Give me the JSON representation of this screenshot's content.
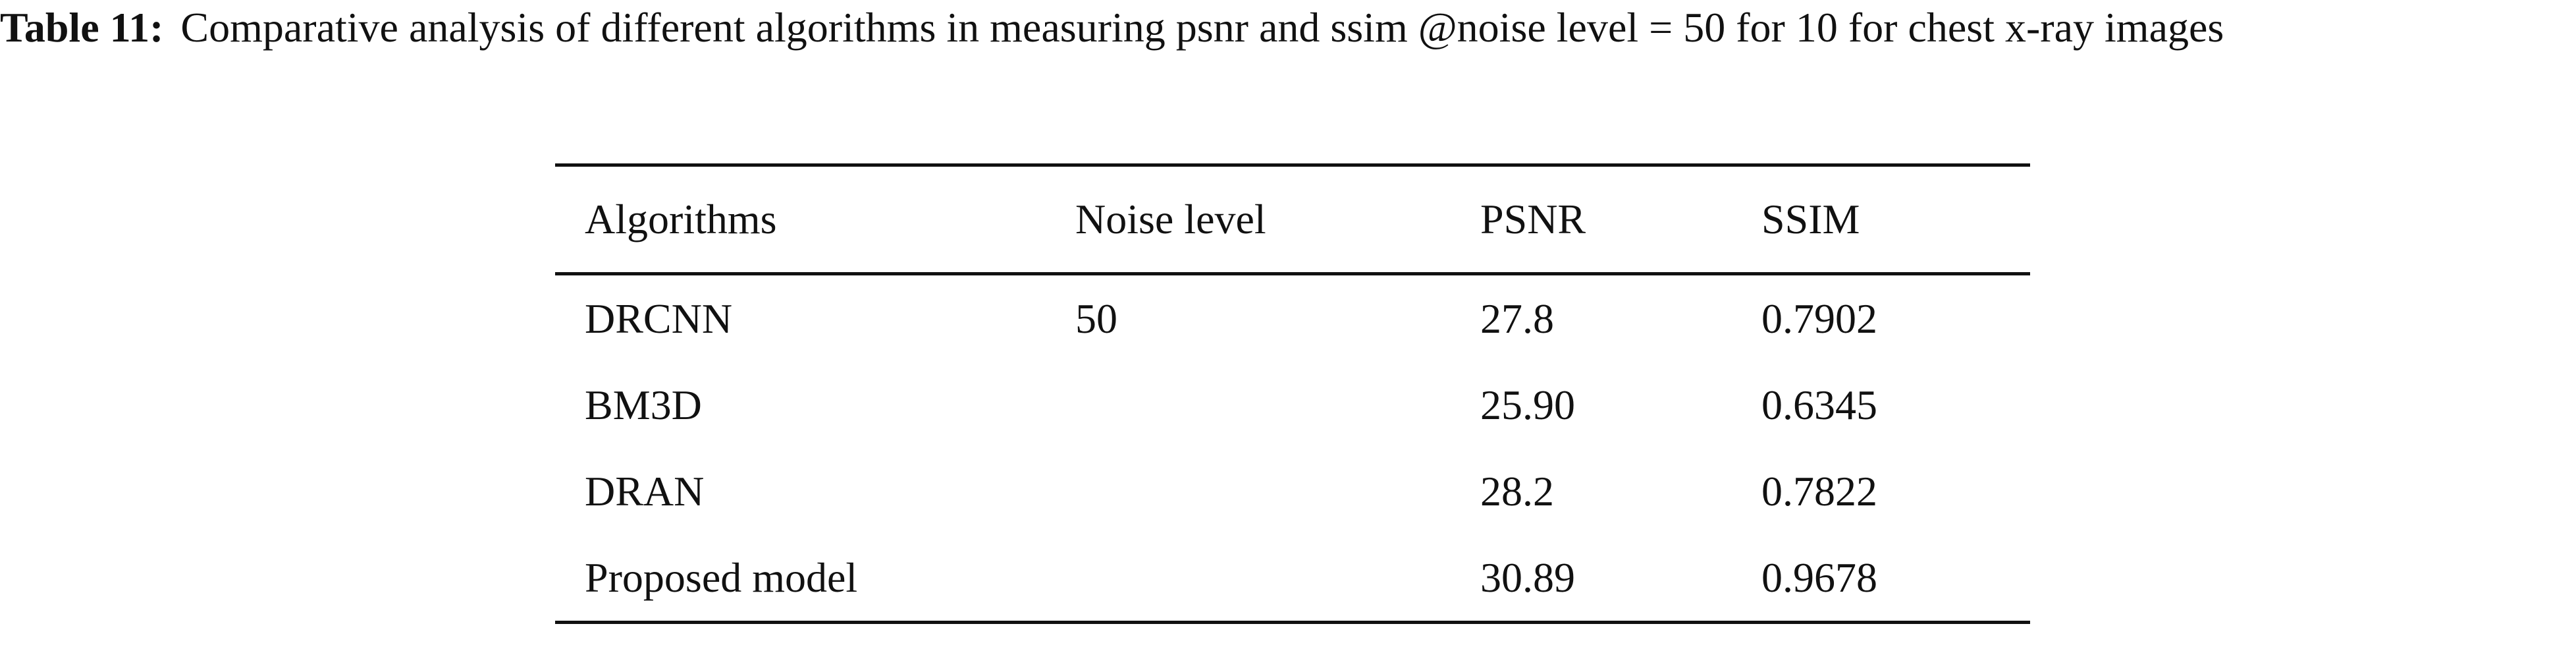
{
  "caption": {
    "label": "Table 11:",
    "text": "Comparative analysis of different algorithms in measuring psnr and ssim @noise level = 50 for 10 for chest x-ray images"
  },
  "table": {
    "headers": [
      "Algorithms",
      "Noise level",
      "PSNR",
      "SSIM"
    ],
    "rows": [
      [
        "DRCNN",
        "50",
        "27.8",
        "0.7902"
      ],
      [
        "BM3D",
        "",
        "25.90",
        "0.6345"
      ],
      [
        "DRAN",
        "",
        "28.2",
        "0.7822"
      ],
      [
        "Proposed model",
        "",
        "30.89",
        "0.9678"
      ]
    ]
  }
}
